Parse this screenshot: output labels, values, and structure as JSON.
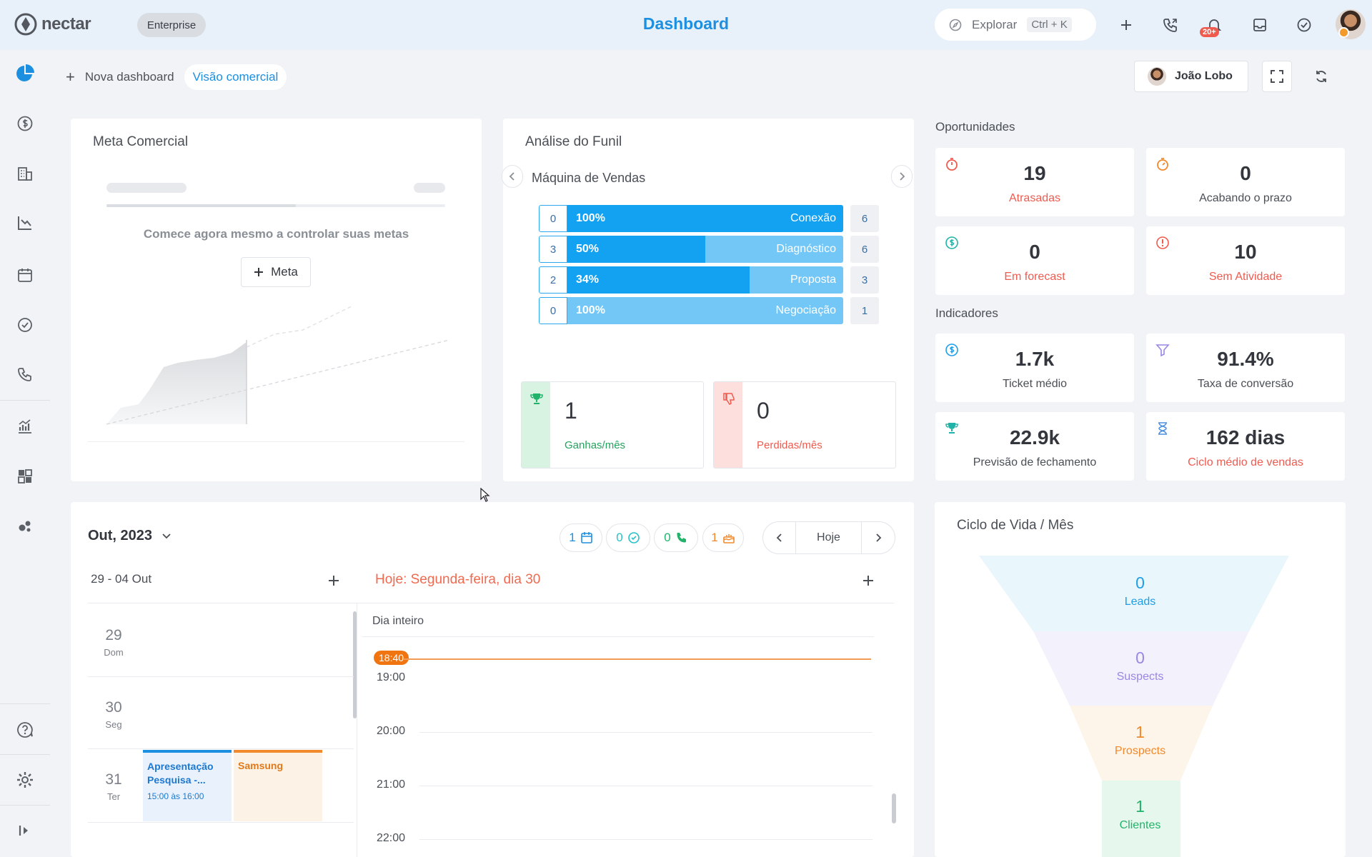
{
  "brand": {
    "name": "nectar",
    "plan": "Enterprise"
  },
  "header": {
    "title": "Dashboard",
    "search_label": "Explorar",
    "search_shortcut": "Ctrl + K",
    "notifications_count": "20+"
  },
  "tabs": {
    "add": "+",
    "new_dashboard": "Nova dashboard",
    "active": "Visão comercial"
  },
  "user_filter": {
    "name": "João Lobo"
  },
  "meta_comercial": {
    "title": "Meta Comercial",
    "message": "Comece agora mesmo a controlar suas metas",
    "button_label": "Meta"
  },
  "funil": {
    "title": "Análise do Funil",
    "pipeline": "Máquina de Vendas",
    "stages": [
      {
        "left": "0",
        "percent": "100%",
        "fill": 1.0,
        "stage": "Conexão",
        "right": "6"
      },
      {
        "left": "3",
        "percent": "50%",
        "fill": 0.5,
        "stage": "Diagnóstico",
        "right": "6"
      },
      {
        "left": "2",
        "percent": "34%",
        "fill": 0.66,
        "stage": "Proposta",
        "right": "3"
      },
      {
        "left": "0",
        "percent": "100%",
        "fill": 0.0,
        "stage": "Negociação",
        "right": "1"
      }
    ],
    "won": {
      "value": "1",
      "label": "Ganhas/mês"
    },
    "lost": {
      "value": "0",
      "label": "Perdidas/mês"
    }
  },
  "oportunidades": {
    "title": "Oportunidades",
    "items": [
      {
        "value": "19",
        "label": "Atrasadas",
        "icon": "stopwatch-icon"
      },
      {
        "value": "0",
        "label": "Acabando o prazo",
        "icon": "timer-icon"
      },
      {
        "value": "0",
        "label": "Em forecast",
        "icon": "dollar-icon"
      },
      {
        "value": "10",
        "label": "Sem Atividade",
        "icon": "alert-icon"
      }
    ]
  },
  "indicadores": {
    "title": "Indicadores",
    "items": [
      {
        "value": "1.7k",
        "label": "Ticket médio",
        "icon": "dollar-icon"
      },
      {
        "value": "91.4%",
        "label": "Taxa de conversão",
        "icon": "filter-icon"
      },
      {
        "value": "22.9k",
        "label": "Previsão de fechamento",
        "icon": "trophy-icon"
      },
      {
        "value": "162 dias",
        "label": "Ciclo médio de vendas",
        "icon": "hourglass-icon"
      }
    ]
  },
  "calendar": {
    "month": "Out, 2023",
    "counters": {
      "appointments": "1",
      "tasks": "0",
      "calls": "0",
      "birthdays": "1"
    },
    "today_button": "Hoje",
    "week_label": "29 - 04 Out",
    "today_label": "Hoje: Segunda-feira, dia 30",
    "all_day": "Dia inteiro",
    "current_time": "18:40",
    "days": [
      {
        "num": "29",
        "weekday": "Dom"
      },
      {
        "num": "30",
        "weekday": "Seg"
      },
      {
        "num": "31",
        "weekday": "Ter"
      }
    ],
    "events": [
      {
        "title": "Apresentação Pesquisa -...",
        "time": "15:00 às 16:00"
      },
      {
        "title": "Samsung"
      }
    ],
    "hours": [
      "19:00",
      "20:00",
      "21:00",
      "22:00"
    ]
  },
  "ciclo": {
    "title": "Ciclo de Vida / Mês",
    "stages": [
      {
        "value": "0",
        "label": "Leads",
        "color": "#1d9ee8"
      },
      {
        "value": "0",
        "label": "Suspects",
        "color": "#9b86e6"
      },
      {
        "value": "1",
        "label": "Prospects",
        "color": "#f08a2c"
      },
      {
        "value": "1",
        "label": "Clientes",
        "color": "#22b36a"
      }
    ]
  }
}
